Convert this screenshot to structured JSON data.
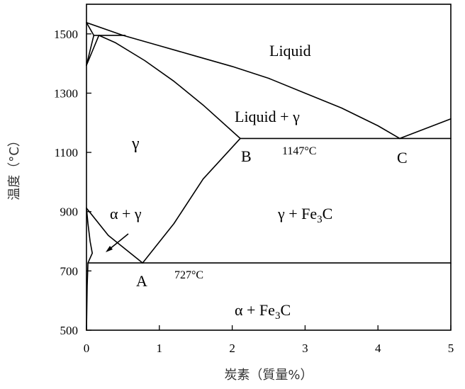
{
  "chart_data": {
    "type": "phase-diagram",
    "xlabel": "炭素（質量%）",
    "ylabel": "温度（°C）",
    "xlim": [
      0,
      5
    ],
    "ylim": [
      500,
      1600
    ],
    "x_ticks": [
      "0",
      "1",
      "2",
      "3",
      "4",
      "5"
    ],
    "y_ticks": [
      "500",
      "700",
      "900",
      "1100",
      "1300",
      "1500"
    ],
    "region_labels": {
      "liquid": "Liquid",
      "liquid_gamma": "Liquid + γ",
      "gamma": "γ",
      "alpha_gamma": "α + γ",
      "gamma_fe3c": "γ + Fe",
      "gamma_fe3c_sub": "3",
      "gamma_fe3c_tail": "C",
      "alpha_fe3c": "α + Fe",
      "alpha_fe3c_sub": "3",
      "alpha_fe3c_tail": "C"
    },
    "points": [
      {
        "name": "A",
        "x": 0.77,
        "y": 727,
        "label": "A"
      },
      {
        "name": "B",
        "x": 2.11,
        "y": 1147,
        "label": "B"
      },
      {
        "name": "C",
        "x": 4.3,
        "y": 1147,
        "label": "C"
      }
    ],
    "annotations": {
      "eutectic_temp": "1147°C",
      "eutectoid_temp": "727°C"
    },
    "lines": [
      {
        "name": "liquidus-left",
        "points": [
          [
            0,
            1538
          ],
          [
            0.5,
            1495
          ],
          [
            1.0,
            1460
          ],
          [
            1.5,
            1425
          ],
          [
            2.0,
            1390
          ],
          [
            2.5,
            1350
          ],
          [
            3.0,
            1300
          ],
          [
            3.5,
            1250
          ],
          [
            4.0,
            1190
          ],
          [
            4.3,
            1147
          ]
        ]
      },
      {
        "name": "liquidus-right",
        "points": [
          [
            4.3,
            1147
          ],
          [
            5.0,
            1213
          ]
        ]
      },
      {
        "name": "solidus",
        "points": [
          [
            0.17,
            1495
          ],
          [
            0.4,
            1470
          ],
          [
            0.8,
            1410
          ],
          [
            1.2,
            1340
          ],
          [
            1.6,
            1260
          ],
          [
            2.11,
            1147
          ]
        ]
      },
      {
        "name": "eutectic-line",
        "points": [
          [
            2.11,
            1147
          ],
          [
            5.0,
            1147
          ]
        ]
      },
      {
        "name": "acm-line",
        "points": [
          [
            0.77,
            727
          ],
          [
            1.2,
            860
          ],
          [
            1.6,
            1010
          ],
          [
            2.11,
            1147
          ]
        ]
      },
      {
        "name": "a3-line",
        "points": [
          [
            0,
            912
          ],
          [
            0.3,
            820
          ],
          [
            0.77,
            727
          ]
        ]
      },
      {
        "name": "a3-alpha-boundary",
        "points": [
          [
            0,
            912
          ],
          [
            0.02,
            860
          ],
          [
            0.05,
            800
          ],
          [
            0.08,
            760
          ],
          [
            0.02,
            727
          ]
        ]
      },
      {
        "name": "alpha-solvus",
        "points": [
          [
            0.02,
            727
          ],
          [
            0.01,
            650
          ],
          [
            0.0,
            500
          ]
        ]
      },
      {
        "name": "eutectoid-line",
        "points": [
          [
            0.02,
            727
          ],
          [
            5.0,
            727
          ]
        ]
      },
      {
        "name": "delta-left",
        "points": [
          [
            0,
            1538
          ],
          [
            0.1,
            1495
          ]
        ]
      },
      {
        "name": "delta-lower",
        "points": [
          [
            0,
            1394
          ],
          [
            0.1,
            1495
          ]
        ]
      },
      {
        "name": "delta-right",
        "points": [
          [
            0,
            1394
          ],
          [
            0.17,
            1495
          ]
        ]
      },
      {
        "name": "peritectic-line",
        "points": [
          [
            0.1,
            1495
          ],
          [
            0.53,
            1495
          ]
        ]
      }
    ]
  }
}
